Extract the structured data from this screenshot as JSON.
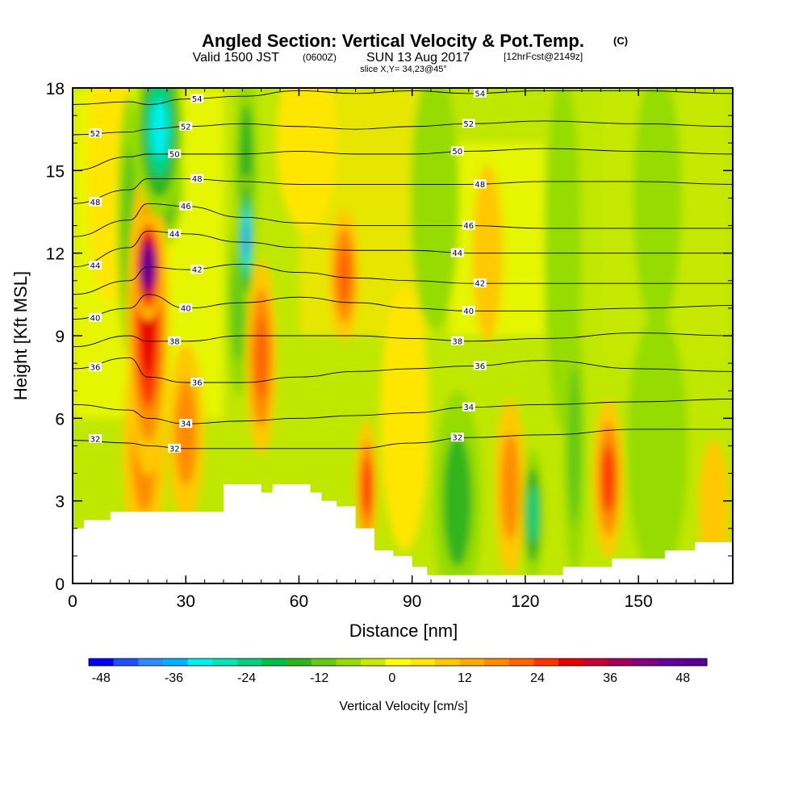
{
  "titles": {
    "main": "Angled Section: Vertical Velocity & Pot.Temp.",
    "main_unit": "(C)",
    "valid_prefix": "Valid 1500 JST",
    "valid_utc": "(0600Z)",
    "valid_date": "SUN 13 Aug 2017",
    "forecast": "[12hrFcst@2149z]",
    "slice": "slice X,Y= 34,23@45°"
  },
  "chart_data": {
    "type": "heatmap",
    "xlabel": "Distance [nm]",
    "ylabel": "Height [Kft MSL]",
    "xlim": [
      0,
      175
    ],
    "ylim": [
      0,
      18
    ],
    "x_ticks": [
      "0",
      "30",
      "60",
      "90",
      "120",
      "150"
    ],
    "y_ticks": [
      "0",
      "3",
      "6",
      "9",
      "12",
      "15",
      "18"
    ],
    "x_tick_values": [
      0,
      30,
      60,
      90,
      120,
      150
    ],
    "y_tick_values": [
      0,
      3,
      6,
      9,
      12,
      15,
      18
    ],
    "colorbar": {
      "label": "Vertical Velocity [cm/s]",
      "range": [
        -48,
        54
      ],
      "step": 4,
      "tick_labels": [
        "-48",
        "-36",
        "-24",
        "-12",
        "0",
        "12",
        "24",
        "36",
        "48"
      ],
      "tick_values": [
        -48,
        -36,
        -24,
        -12,
        0,
        12,
        24,
        36,
        48
      ],
      "colors": [
        "#0000ff",
        "#1f50ff",
        "#2f8cff",
        "#00b4ff",
        "#00f0f0",
        "#00e6b4",
        "#00d282",
        "#00be46",
        "#30b41e",
        "#64c814",
        "#96dc00",
        "#c8eb00",
        "#ffff00",
        "#ffe600",
        "#ffc800",
        "#ffaa00",
        "#ff8c00",
        "#ff6400",
        "#ff3200",
        "#e60000",
        "#c80030",
        "#a0005a",
        "#820082",
        "#640096",
        "#5a0096"
      ]
    },
    "vertical_velocity_cells": [
      {
        "x": 20,
        "y": 11.5,
        "value": 54,
        "sx": 2.5,
        "sy": 1.2
      },
      {
        "x": 20,
        "y": 9.5,
        "value": 28,
        "sx": 3.5,
        "sy": 3.5
      },
      {
        "x": 19,
        "y": 5,
        "value": 16,
        "sx": 3.5,
        "sy": 2.5
      },
      {
        "x": 23,
        "y": 16.5,
        "value": -32,
        "sx": 4,
        "sy": 2
      },
      {
        "x": 23,
        "y": 14.5,
        "value": -20,
        "sx": 4,
        "sy": 1.5
      },
      {
        "x": 15,
        "y": 13,
        "value": -12,
        "sx": 2,
        "sy": 3
      },
      {
        "x": 46,
        "y": 12.5,
        "value": -40,
        "sx": 1.3,
        "sy": 1.5
      },
      {
        "x": 46,
        "y": 15,
        "value": -16,
        "sx": 2,
        "sy": 2.5
      },
      {
        "x": 44,
        "y": 10,
        "value": -12,
        "sx": 2,
        "sy": 2
      },
      {
        "x": 50,
        "y": 8.2,
        "value": 20,
        "sx": 2.5,
        "sy": 2.2
      },
      {
        "x": 30,
        "y": 5.5,
        "value": 16,
        "sx": 3,
        "sy": 2
      },
      {
        "x": 72,
        "y": 11.2,
        "value": 20,
        "sx": 2.5,
        "sy": 1.5
      },
      {
        "x": 78,
        "y": 3.5,
        "value": 24,
        "sx": 1.8,
        "sy": 1.5
      },
      {
        "x": 102,
        "y": 3,
        "value": -16,
        "sx": 4,
        "sy": 2.5
      },
      {
        "x": 116,
        "y": 3.5,
        "value": 16,
        "sx": 2.5,
        "sy": 2
      },
      {
        "x": 122,
        "y": 2.5,
        "value": -24,
        "sx": 1.8,
        "sy": 1.5
      },
      {
        "x": 133,
        "y": 5,
        "value": -12,
        "sx": 1.8,
        "sy": 3
      },
      {
        "x": 142,
        "y": 3.8,
        "value": 24,
        "sx": 2.5,
        "sy": 1.8
      },
      {
        "x": 110,
        "y": 12,
        "value": 10,
        "sx": 2.5,
        "sy": 2
      },
      {
        "x": 96,
        "y": 14,
        "value": -8,
        "sx": 4,
        "sy": 3
      },
      {
        "x": 130,
        "y": 12,
        "value": -8,
        "sx": 3,
        "sy": 4
      },
      {
        "x": 155,
        "y": 14,
        "value": -6,
        "sx": 4,
        "sy": 3
      },
      {
        "x": 155,
        "y": 5,
        "value": -6,
        "sx": 5,
        "sy": 3
      },
      {
        "x": 88,
        "y": 6,
        "value": 6,
        "sx": 4,
        "sy": 3
      },
      {
        "x": 10,
        "y": 15,
        "value": 4,
        "sx": 4,
        "sy": 3
      },
      {
        "x": 62,
        "y": 16,
        "value": 6,
        "sx": 5,
        "sy": 2
      },
      {
        "x": 170,
        "y": 2.8,
        "value": 8,
        "sx": 2.5,
        "sy": 1.5
      }
    ],
    "terrain_profile": {
      "x": [
        0,
        3,
        3,
        10,
        10,
        40,
        40,
        47,
        50,
        53,
        60,
        63,
        66,
        70,
        75,
        80,
        85,
        90,
        94,
        110,
        128,
        130,
        135,
        143,
        148,
        157,
        165,
        175
      ],
      "height": [
        2,
        2,
        2.3,
        2.3,
        2.6,
        2.6,
        3.6,
        3.6,
        3.3,
        3.6,
        3.6,
        3.3,
        3.0,
        2.8,
        2.0,
        1.2,
        1.0,
        0.6,
        0.3,
        0.3,
        0.3,
        0.6,
        0.6,
        0.9,
        0.9,
        1.2,
        1.5,
        1.6
      ]
    },
    "pot_temp_contours": [
      {
        "label": "32",
        "heights": [
          5.2,
          5.1,
          5.0,
          4.9,
          4.9,
          4.9,
          4.9,
          5.1,
          5.3,
          5.4,
          5.6,
          5.6
        ]
      },
      {
        "label": "34",
        "heights": [
          6.5,
          6.3,
          6.0,
          5.8,
          5.9,
          6.0,
          6.1,
          6.2,
          6.4,
          6.5,
          6.6,
          6.7
        ]
      },
      {
        "label": "36",
        "heights": [
          7.8,
          8.2,
          7.5,
          7.3,
          7.3,
          7.5,
          7.7,
          7.8,
          7.9,
          8.1,
          7.8,
          7.7
        ]
      },
      {
        "label": "38",
        "heights": [
          8.6,
          9.0,
          8.8,
          8.8,
          9.0,
          9.0,
          9.0,
          8.9,
          8.8,
          8.9,
          9.1,
          9.0
        ]
      },
      {
        "label": "40",
        "heights": [
          9.6,
          10.0,
          10.5,
          10.0,
          10.2,
          10.4,
          10.2,
          10.0,
          9.9,
          9.9,
          10.0,
          10.1
        ]
      },
      {
        "label": "42",
        "heights": [
          10.5,
          11.0,
          11.5,
          11.4,
          11.6,
          11.3,
          11.1,
          11.0,
          10.9,
          10.9,
          10.9,
          10.9
        ]
      },
      {
        "label": "44",
        "heights": [
          11.5,
          12.2,
          12.8,
          12.7,
          12.4,
          12.2,
          12.1,
          12.1,
          12.0,
          12.0,
          12.0,
          12.0
        ]
      },
      {
        "label": "46",
        "heights": [
          12.6,
          13.2,
          13.8,
          13.7,
          13.3,
          13.1,
          13.0,
          13.0,
          13.0,
          12.9,
          12.9,
          12.9
        ]
      },
      {
        "label": "48",
        "heights": [
          13.8,
          14.3,
          14.7,
          14.7,
          14.6,
          14.5,
          14.5,
          14.5,
          14.5,
          14.6,
          14.6,
          14.5
        ]
      },
      {
        "label": "50",
        "heights": [
          15.0,
          15.5,
          15.6,
          15.6,
          15.6,
          15.7,
          15.6,
          15.6,
          15.7,
          15.8,
          15.7,
          15.6
        ]
      },
      {
        "label": "52",
        "heights": [
          16.3,
          16.4,
          16.5,
          16.6,
          16.7,
          16.6,
          16.5,
          16.6,
          16.7,
          16.8,
          16.7,
          16.6
        ]
      },
      {
        "label": "54",
        "heights": [
          17.4,
          17.5,
          17.4,
          17.6,
          17.7,
          17.9,
          17.8,
          17.9,
          17.8,
          17.9,
          17.9,
          17.8
        ]
      }
    ],
    "contour_x": [
      0,
      15,
      20,
      30,
      45,
      60,
      75,
      90,
      105,
      125,
      150,
      175
    ]
  }
}
